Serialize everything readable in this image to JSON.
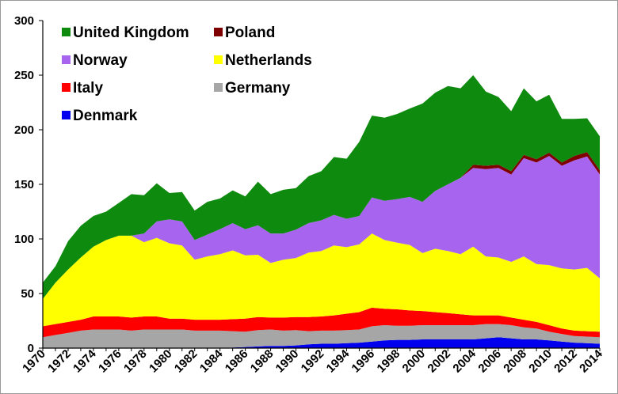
{
  "chart_data": {
    "type": "area",
    "stacked": true,
    "x": [
      1970,
      1971,
      1972,
      1973,
      1974,
      1975,
      1976,
      1977,
      1978,
      1979,
      1980,
      1981,
      1982,
      1983,
      1984,
      1985,
      1986,
      1987,
      1988,
      1989,
      1990,
      1991,
      1992,
      1993,
      1994,
      1995,
      1996,
      1997,
      1998,
      1999,
      2000,
      2001,
      2002,
      2003,
      2004,
      2005,
      2006,
      2007,
      2008,
      2009,
      2010,
      2011,
      2012,
      2013,
      2014
    ],
    "x_tick_labels": [
      "1970",
      "1972",
      "1974",
      "1976",
      "1978",
      "1980",
      "1982",
      "1984",
      "1986",
      "1988",
      "1990",
      "1992",
      "1994",
      "1996",
      "1998",
      "2000",
      "2002",
      "2004",
      "2006",
      "2008",
      "2010",
      "2012",
      "2014"
    ],
    "y_ticks": [
      0,
      50,
      100,
      150,
      200,
      250,
      300
    ],
    "ylim": [
      0,
      300
    ],
    "grid": false,
    "legend_position": "top-left",
    "series": [
      {
        "name": "Denmark",
        "color": "#0000ee",
        "values": [
          0,
          0,
          0,
          0,
          0,
          0,
          0,
          0,
          0,
          0,
          0,
          0,
          0,
          0,
          0,
          0.5,
          1,
          1.5,
          2,
          2,
          2.5,
          3.5,
          4,
          4,
          4.5,
          5,
          6,
          7,
          7.5,
          7.5,
          8,
          8,
          8,
          8,
          8,
          9,
          10,
          9,
          8,
          8,
          7,
          6,
          5,
          4.5,
          4
        ]
      },
      {
        "name": "Germany",
        "color": "#a6a6a6",
        "values": [
          10,
          12,
          14,
          16,
          17,
          17,
          17,
          16,
          17,
          17,
          17,
          17,
          16,
          16,
          16,
          15,
          14,
          15,
          15,
          14,
          14,
          12,
          12,
          12,
          12,
          12,
          14,
          14,
          13,
          13,
          13,
          13,
          13,
          13,
          13,
          13,
          12,
          12,
          11,
          10,
          8,
          7,
          6,
          6,
          6
        ]
      },
      {
        "name": "Italy",
        "color": "#ff0000",
        "values": [
          10,
          10,
          10,
          10,
          12,
          12,
          12,
          12,
          12,
          12,
          10,
          10,
          10,
          10,
          10,
          11,
          12,
          12,
          11,
          12,
          12,
          13,
          13,
          14,
          15,
          16,
          17,
          15,
          15,
          14,
          13,
          12,
          11,
          10,
          9,
          8,
          8,
          7,
          7,
          6,
          6,
          5,
          5,
          5,
          5
        ]
      },
      {
        "name": "Netherlands",
        "color": "#ffff00",
        "values": [
          25,
          38,
          48,
          57,
          64,
          70,
          74,
          75,
          68,
          72,
          69,
          67,
          55,
          58,
          60,
          63,
          58,
          57,
          50,
          53,
          54,
          59,
          60,
          64,
          61,
          62,
          68,
          63,
          61,
          60,
          53,
          58,
          57,
          55,
          63,
          54,
          53,
          51,
          58,
          53,
          55,
          55,
          56,
          58,
          49
        ]
      },
      {
        "name": "Norway",
        "color": "#a764ee",
        "values": [
          0,
          0,
          0,
          0,
          0,
          0,
          0,
          0,
          8,
          15,
          22,
          22,
          18,
          20,
          23,
          25,
          24,
          27,
          27,
          24,
          26,
          27,
          28,
          28,
          26,
          26,
          33,
          36,
          40,
          44,
          47,
          53,
          61,
          70,
          72,
          80,
          82,
          80,
          90,
          93,
          100,
          94,
          100,
          102,
          95
        ]
      },
      {
        "name": "Poland",
        "color": "#7f0000",
        "values": [
          0,
          0,
          0,
          0,
          0,
          0,
          0,
          0,
          0,
          0,
          0,
          0,
          0,
          0,
          0,
          0,
          0,
          0,
          0,
          0,
          0,
          0,
          0,
          0,
          0,
          0,
          0,
          0,
          0,
          0,
          0,
          0,
          0,
          0,
          3,
          3,
          3,
          3,
          3,
          3,
          3,
          3,
          4,
          4,
          4
        ]
      },
      {
        "name": "United Kingdom",
        "color": "#0e8a0e",
        "values": [
          15,
          15,
          26,
          29,
          28,
          26,
          30,
          38,
          35,
          35,
          24,
          27,
          27,
          30,
          28,
          30,
          30,
          40,
          36,
          40,
          38,
          43,
          45,
          53,
          55,
          68,
          75,
          76,
          78,
          81,
          90,
          90,
          90,
          82,
          82,
          68,
          62,
          55,
          61,
          53,
          53,
          40,
          34,
          31,
          31
        ]
      }
    ],
    "legend": [
      {
        "name": "United Kingdom",
        "color": "#0e8a0e"
      },
      {
        "name": "Poland",
        "color": "#7f0000"
      },
      {
        "name": "Norway",
        "color": "#a764ee"
      },
      {
        "name": "Netherlands",
        "color": "#ffff00"
      },
      {
        "name": "Italy",
        "color": "#ff0000"
      },
      {
        "name": "Germany",
        "color": "#a6a6a6"
      },
      {
        "name": "Denmark",
        "color": "#0000ee"
      }
    ]
  }
}
